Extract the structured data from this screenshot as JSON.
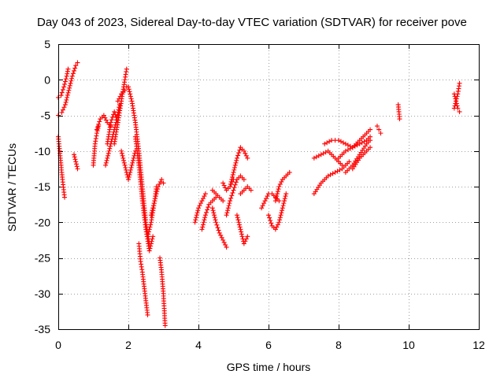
{
  "chart_data": {
    "type": "scatter",
    "title": "Day 043 of 2023, Sidereal Day-to-day VTEC variation (SDTVAR) for receiver pove",
    "xlabel": "GPS time / hours",
    "ylabel": "SDTVAR / TECUs",
    "xlim": [
      0,
      12
    ],
    "ylim": [
      -35,
      5
    ],
    "xticks": [
      "0",
      "2",
      "4",
      "6",
      "8",
      "10",
      "12"
    ],
    "yticks": [
      "5",
      "0",
      "-5",
      "-10",
      "-15",
      "-20",
      "-25",
      "-30",
      "-35"
    ],
    "grid": true,
    "marker": "+",
    "color": "#ff0000",
    "segments": [
      {
        "x": [
          0.0,
          0.08,
          0.16,
          0.24,
          0.28
        ],
        "y": [
          -2.5,
          -2.2,
          -1.0,
          0.5,
          1.5
        ]
      },
      {
        "x": [
          0.0,
          0.1,
          0.2,
          0.3,
          0.4,
          0.5,
          0.55
        ],
        "y": [
          -5.0,
          -4.6,
          -3.5,
          -1.5,
          0.5,
          2.0,
          2.4
        ]
      },
      {
        "x": [
          0.0,
          0.06,
          0.12,
          0.18
        ],
        "y": [
          -8.0,
          -11.0,
          -14.0,
          -16.5
        ]
      },
      {
        "x": [
          0.45,
          0.5,
          0.55
        ],
        "y": [
          -10.5,
          -11.5,
          -12.5
        ]
      },
      {
        "x": [
          1.0,
          1.05,
          1.1,
          1.15
        ],
        "y": [
          -12.0,
          -9.0,
          -7.5,
          -6.5
        ]
      },
      {
        "x": [
          1.1,
          1.2,
          1.3,
          1.4,
          1.5
        ],
        "y": [
          -7.0,
          -5.5,
          -5.0,
          -6.0,
          -6.5
        ]
      },
      {
        "x": [
          1.4,
          1.5,
          1.6,
          1.7
        ],
        "y": [
          -9.0,
          -6.0,
          -4.5,
          -6.0
        ]
      },
      {
        "x": [
          1.35,
          1.45,
          1.55,
          1.65,
          1.75
        ],
        "y": [
          -12.0,
          -10.0,
          -8.0,
          -6.0,
          -3.5
        ]
      },
      {
        "x": [
          1.6,
          1.7,
          1.8,
          1.9,
          1.95
        ],
        "y": [
          -9.0,
          -6.0,
          -3.0,
          0.0,
          1.5
        ]
      },
      {
        "x": [
          1.7,
          1.8,
          1.9,
          1.95
        ],
        "y": [
          -3.0,
          -2.0,
          -1.5,
          -1.0
        ]
      },
      {
        "x": [
          1.8,
          1.9,
          2.0,
          2.1,
          2.2
        ],
        "y": [
          -10.0,
          -12.0,
          -14.0,
          -12.0,
          -10.0
        ]
      },
      {
        "x": [
          2.0,
          2.1,
          2.2,
          2.3,
          2.4,
          2.5,
          2.6
        ],
        "y": [
          -1.0,
          -3.0,
          -6.0,
          -10.0,
          -15.0,
          -20.0,
          -23.0
        ]
      },
      {
        "x": [
          2.2,
          2.3,
          2.4,
          2.5,
          2.6,
          2.7
        ],
        "y": [
          -8.0,
          -12.0,
          -17.0,
          -21.0,
          -24.0,
          -22.0
        ]
      },
      {
        "x": [
          2.3,
          2.35,
          2.4,
          2.45,
          2.5,
          2.55
        ],
        "y": [
          -23.0,
          -25.5,
          -27.0,
          -29.0,
          -31.0,
          -33.0
        ]
      },
      {
        "x": [
          2.55,
          2.65,
          2.75,
          2.8
        ],
        "y": [
          -22.0,
          -20.0,
          -17.0,
          -15.0
        ]
      },
      {
        "x": [
          2.65,
          2.75,
          2.85,
          2.95,
          3.0
        ],
        "y": [
          -19.0,
          -17.0,
          -15.0,
          -14.0,
          -14.5
        ]
      },
      {
        "x": [
          2.9,
          2.95,
          3.0,
          3.05
        ],
        "y": [
          -25.0,
          -27.0,
          -30.0,
          -34.5
        ]
      },
      {
        "x": [
          3.9,
          4.0,
          4.1,
          4.2
        ],
        "y": [
          -20.0,
          -18.0,
          -17.0,
          -16.0
        ]
      },
      {
        "x": [
          4.1,
          4.2,
          4.3,
          4.4,
          4.5
        ],
        "y": [
          -21.0,
          -19.0,
          -17.5,
          -17.0,
          -16.5
        ]
      },
      {
        "x": [
          4.4,
          4.5,
          4.6,
          4.7
        ],
        "y": [
          -15.5,
          -16.0,
          -16.5,
          -17.0
        ]
      },
      {
        "x": [
          4.4,
          4.5,
          4.6,
          4.7,
          4.8
        ],
        "y": [
          -18.0,
          -20.0,
          -21.5,
          -22.5,
          -23.5
        ]
      },
      {
        "x": [
          4.7,
          4.8,
          4.9,
          5.0
        ],
        "y": [
          -14.5,
          -15.5,
          -15.0,
          -14.0
        ]
      },
      {
        "x": [
          4.8,
          4.9,
          5.0,
          5.1,
          5.2,
          5.3
        ],
        "y": [
          -19.0,
          -17.0,
          -15.5,
          -14.0,
          -13.5,
          -14.0
        ]
      },
      {
        "x": [
          4.9,
          5.0,
          5.1,
          5.2,
          5.3,
          5.4
        ],
        "y": [
          -15.0,
          -13.0,
          -11.0,
          -9.5,
          -10.0,
          -11.0
        ]
      },
      {
        "x": [
          5.1,
          5.2,
          5.3,
          5.4
        ],
        "y": [
          -19.0,
          -21.0,
          -23.0,
          -22.0
        ]
      },
      {
        "x": [
          5.2,
          5.3,
          5.4,
          5.5
        ],
        "y": [
          -16.0,
          -15.5,
          -15.0,
          -15.5
        ]
      },
      {
        "x": [
          5.8,
          5.9,
          6.0,
          6.1,
          6.2,
          6.3
        ],
        "y": [
          -18.0,
          -17.0,
          -16.0,
          -16.0,
          -16.5,
          -17.0
        ]
      },
      {
        "x": [
          6.0,
          6.1,
          6.2,
          6.3,
          6.4,
          6.5
        ],
        "y": [
          -19.0,
          -20.5,
          -21.0,
          -20.0,
          -18.0,
          -16.0
        ]
      },
      {
        "x": [
          6.2,
          6.3,
          6.4,
          6.5,
          6.6
        ],
        "y": [
          -17.0,
          -15.0,
          -14.0,
          -13.5,
          -13.0
        ]
      },
      {
        "x": [
          7.3,
          7.5,
          7.7,
          7.9,
          8.1,
          8.3
        ],
        "y": [
          -16.0,
          -14.5,
          -13.5,
          -13.0,
          -12.5,
          -11.5
        ]
      },
      {
        "x": [
          7.3,
          7.5,
          7.7,
          7.9,
          8.1
        ],
        "y": [
          -11.0,
          -10.5,
          -10.0,
          -11.0,
          -12.0
        ]
      },
      {
        "x": [
          7.6,
          7.8,
          8.0,
          8.2,
          8.4,
          8.6,
          8.8,
          8.9
        ],
        "y": [
          -9.0,
          -8.5,
          -8.5,
          -9.0,
          -9.5,
          -8.5,
          -7.5,
          -7.0
        ]
      },
      {
        "x": [
          8.0,
          8.2,
          8.4,
          8.6,
          8.8,
          8.9
        ],
        "y": [
          -11.0,
          -10.0,
          -9.5,
          -9.0,
          -8.5,
          -8.0
        ]
      },
      {
        "x": [
          8.2,
          8.4,
          8.6,
          8.8,
          8.9
        ],
        "y": [
          -13.0,
          -12.0,
          -10.5,
          -9.0,
          -8.5
        ]
      },
      {
        "x": [
          8.4,
          8.6,
          8.8,
          8.9
        ],
        "y": [
          -12.5,
          -11.0,
          -10.0,
          -9.5
        ]
      },
      {
        "x": [
          9.1,
          9.15,
          9.2
        ],
        "y": [
          -6.5,
          -7.0,
          -7.5
        ]
      },
      {
        "x": [
          9.7,
          9.72,
          9.74
        ],
        "y": [
          -3.5,
          -4.5,
          -5.5
        ]
      },
      {
        "x": [
          11.3,
          11.35,
          11.4,
          11.45
        ],
        "y": [
          -4.0,
          -3.0,
          -2.0,
          -0.5
        ]
      },
      {
        "x": [
          11.3,
          11.35,
          11.4,
          11.45
        ],
        "y": [
          -2.0,
          -3.0,
          -4.0,
          -4.5
        ]
      }
    ]
  }
}
